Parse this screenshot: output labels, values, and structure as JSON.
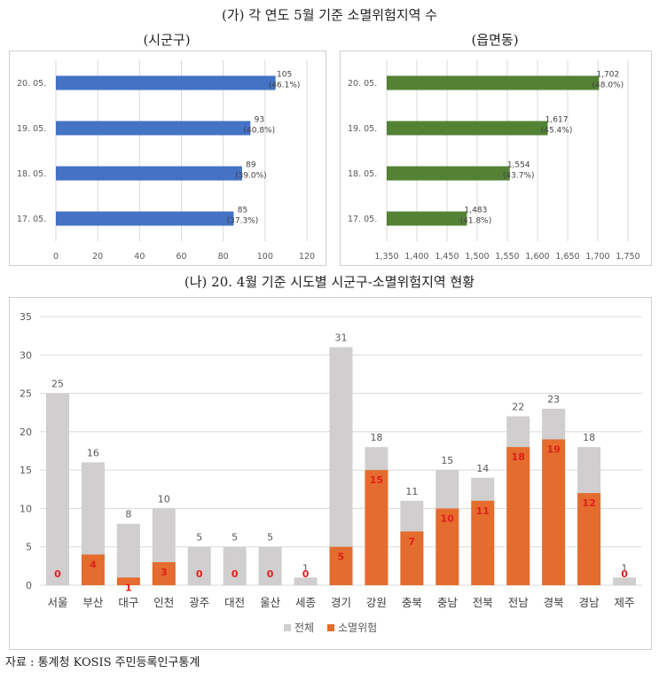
{
  "figure": {
    "title_a": "(가) 각 연도 5월 기준 소멸위험지역 수",
    "title_b": "(나) 20. 4월 기준 시도별 시군구-소멸위험지역 현황",
    "source": "자료 : 통계청 KOSIS 주민등록인구통계"
  },
  "chart_data": [
    {
      "type": "bar",
      "orientation": "horizontal",
      "title": "(시군구)",
      "categories": [
        "20. 05.",
        "19. 05.",
        "18. 05.",
        "17. 05."
      ],
      "values": [
        105,
        93,
        89,
        85
      ],
      "data_labels": [
        "105",
        "93",
        "89",
        "85"
      ],
      "pct_labels": [
        "(46.1%)",
        "(40.8%)",
        "(39.0%)",
        "(37.3%)"
      ],
      "xlim": [
        0,
        120
      ],
      "xticks": [
        0,
        20,
        40,
        60,
        80,
        100,
        120
      ],
      "xtick_labels": [
        "0",
        "20",
        "40",
        "60",
        "80",
        "100",
        "120"
      ],
      "grid": true,
      "color": "#4472C4"
    },
    {
      "type": "bar",
      "orientation": "horizontal",
      "title": "(읍면동)",
      "categories": [
        "20. 05.",
        "19. 05.",
        "18. 05.",
        "17. 05."
      ],
      "values": [
        1702,
        1617,
        1554,
        1483
      ],
      "data_labels": [
        "1,702",
        "1,617",
        "1,554",
        "1,483"
      ],
      "pct_labels": [
        "(48.0%)",
        "(45.4%)",
        "(43.7%)",
        "(41.8%)"
      ],
      "xlim": [
        1350,
        1750
      ],
      "xticks": [
        1350,
        1400,
        1450,
        1500,
        1550,
        1600,
        1650,
        1700,
        1750
      ],
      "xtick_labels": [
        "1,350",
        "1,400",
        "1,450",
        "1,500",
        "1,550",
        "1,600",
        "1,650",
        "1,700",
        "1,750"
      ],
      "grid": true,
      "color": "#548235"
    },
    {
      "type": "bar",
      "orientation": "vertical",
      "categories": [
        "서울",
        "부산",
        "대구",
        "인천",
        "광주",
        "대전",
        "울산",
        "세종",
        "경기",
        "강원",
        "충북",
        "충남",
        "전북",
        "전남",
        "경북",
        "경남",
        "제주"
      ],
      "series": [
        {
          "name": "전체",
          "values": [
            25,
            16,
            8,
            10,
            5,
            5,
            5,
            1,
            31,
            18,
            11,
            15,
            14,
            22,
            23,
            18,
            1
          ],
          "color": "#D0CECE"
        },
        {
          "name": "소멸위험",
          "values": [
            0,
            4,
            1,
            3,
            0,
            0,
            0,
            0,
            5,
            15,
            7,
            10,
            11,
            18,
            19,
            12,
            0
          ],
          "color": "#E46C2E"
        }
      ],
      "ylim": [
        0,
        35
      ],
      "yticks": [
        0,
        5,
        10,
        15,
        20,
        25,
        30,
        35
      ],
      "grid": true,
      "legend": "bottom",
      "label_colors": {
        "total": "#595959",
        "risk": "#E0201B"
      }
    }
  ]
}
